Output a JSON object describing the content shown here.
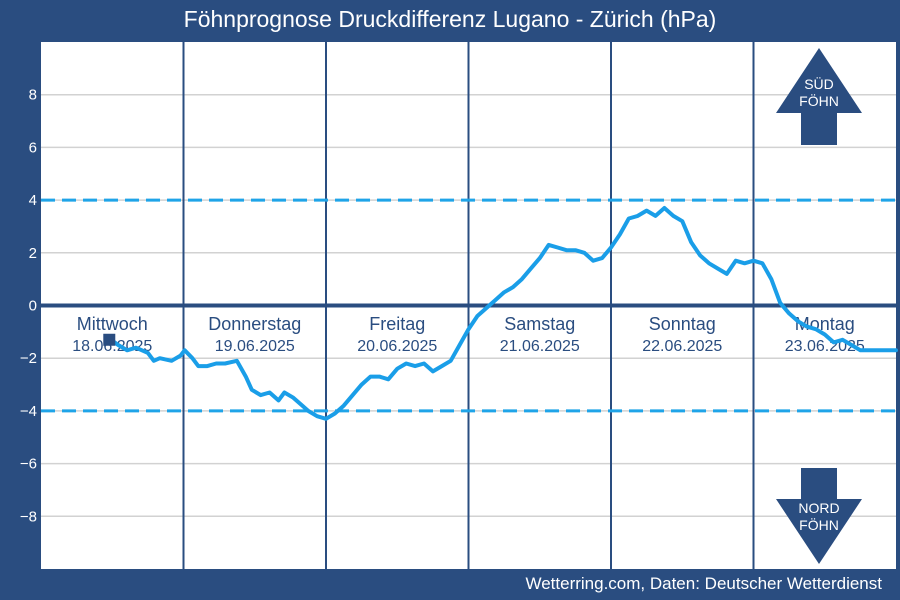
{
  "chart_data": {
    "type": "line",
    "title": "Föhnprognose Druckdifferenz Lugano - Zürich (hPa)",
    "source": "Wetterring.com, Daten: Deutscher Wetterdienst",
    "xlabel": "",
    "ylabel": "",
    "ylim": [
      -10,
      10
    ],
    "yticks": [
      8,
      6,
      4,
      2,
      0,
      -2,
      -4,
      -6,
      -8
    ],
    "ytick_labels": [
      "8",
      "6",
      "4",
      "2",
      "0",
      "−2",
      "−4",
      "−6",
      "−8"
    ],
    "grid": true,
    "x_unit": "hours from start of Mittwoch 18.06.2025",
    "xlim": [
      0,
      144
    ],
    "days": [
      {
        "weekday": "Mittwoch",
        "date": "18.06.2025"
      },
      {
        "weekday": "Donnerstag",
        "date": "19.06.2025"
      },
      {
        "weekday": "Freitag",
        "date": "20.06.2025"
      },
      {
        "weekday": "Samstag",
        "date": "21.06.2025"
      },
      {
        "weekday": "Sonntag",
        "date": "22.06.2025"
      },
      {
        "weekday": "Montag",
        "date": "23.06.2025"
      }
    ],
    "thresholds": [
      4,
      -4
    ],
    "series": [
      {
        "color": "#1a9ee8",
        "x": [
          11.8,
          13.0,
          14.5,
          16.0,
          18.0,
          19.0,
          20.0,
          22.0,
          23.5,
          24.2,
          25.5,
          26.5,
          28.0,
          29.5,
          31.0,
          33.0,
          34.5,
          35.5,
          37.0,
          38.5,
          40.0,
          41.0,
          42.5,
          44.0,
          45.0,
          46.5,
          48.0,
          49.5,
          51.0,
          52.5,
          54.0,
          55.5,
          57.0,
          58.5,
          60.0,
          61.5,
          63.0,
          64.5,
          66.0,
          67.5,
          69.0,
          70.5,
          72.0,
          73.5,
          75.0,
          76.5,
          78.0,
          79.5,
          81.0,
          82.5,
          84.0,
          85.5,
          87.0,
          88.5,
          90.0,
          91.5,
          93.0,
          94.5,
          96.0,
          97.5,
          99.0,
          100.5,
          102.0,
          103.5,
          105.0,
          106.5,
          108.0,
          109.5,
          111.0,
          112.5,
          114.0,
          115.5,
          117.0,
          118.5,
          120.0,
          121.5,
          123.0,
          124.5,
          126.0,
          127.5,
          129.0,
          130.5,
          132.0,
          133.5,
          135.0,
          136.5,
          138.0,
          139.5,
          141.0,
          142.5,
          144.0
        ],
        "values": [
          -1.3,
          -1.5,
          -1.7,
          -1.6,
          -1.8,
          -2.1,
          -2.0,
          -2.1,
          -1.9,
          -1.7,
          -2.0,
          -2.3,
          -2.3,
          -2.2,
          -2.2,
          -2.1,
          -2.7,
          -3.2,
          -3.4,
          -3.3,
          -3.6,
          -3.3,
          -3.5,
          -3.8,
          -4.0,
          -4.2,
          -4.3,
          -4.1,
          -3.8,
          -3.4,
          -3.0,
          -2.7,
          -2.7,
          -2.8,
          -2.4,
          -2.2,
          -2.3,
          -2.2,
          -2.5,
          -2.3,
          -2.1,
          -1.5,
          -0.9,
          -0.4,
          -0.1,
          0.2,
          0.5,
          0.7,
          1.0,
          1.4,
          1.8,
          2.3,
          2.2,
          2.1,
          2.1,
          2.0,
          1.7,
          1.8,
          2.2,
          2.7,
          3.3,
          3.4,
          3.6,
          3.4,
          3.7,
          3.4,
          3.2,
          2.4,
          1.9,
          1.6,
          1.4,
          1.2,
          1.7,
          1.6,
          1.7,
          1.6,
          1.0,
          0.1,
          -0.3,
          -0.6,
          -0.8,
          -0.9,
          -1.1,
          -1.4,
          -1.3,
          -1.5,
          -1.7,
          -1.7,
          -1.7,
          -1.7,
          -1.7
        ]
      }
    ],
    "markers": [
      {
        "x": 11.5,
        "y": -1.3
      }
    ],
    "annotations": [
      {
        "lines": [
          "SÜD",
          "FÖHN"
        ],
        "direction": "up"
      },
      {
        "lines": [
          "NORD",
          "FÖHN"
        ],
        "direction": "down"
      }
    ],
    "colors": {
      "frame": "#2a4d80",
      "plot_background": "#ffffff",
      "grid": "#d2d2d2",
      "zero_line": "#2a4d80",
      "threshold": "#1fa4e8",
      "day_separator": "#2a4d80",
      "day_label": "#2a4d80",
      "arrow": "#2a4d80",
      "text_on_frame": "#ffffff"
    }
  }
}
